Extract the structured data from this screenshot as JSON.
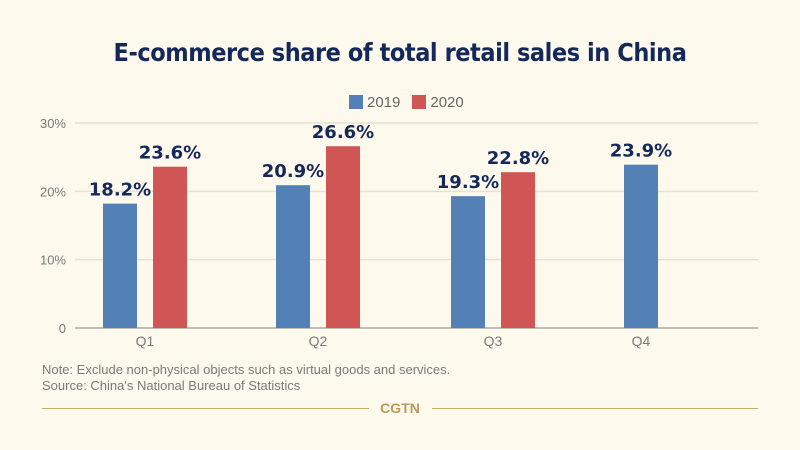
{
  "chart_data": {
    "type": "bar",
    "title": "E-commerce share of total retail sales in China",
    "categories": [
      "Q1",
      "Q2",
      "Q3",
      "Q4"
    ],
    "series": [
      {
        "name": "2019",
        "color": "#5381b5",
        "values": [
          18.2,
          20.9,
          19.3,
          23.9
        ]
      },
      {
        "name": "2020",
        "color": "#d05555",
        "values": [
          23.6,
          26.6,
          22.8,
          null
        ]
      }
    ],
    "data_labels": [
      [
        "18.2%",
        "20.9%",
        "19.3%",
        "23.9%"
      ],
      [
        "23.6%",
        "26.6%",
        "22.8%",
        null
      ]
    ],
    "xlabel": "",
    "ylabel": "",
    "ylim": [
      0,
      30
    ],
    "yticks": [
      0,
      10,
      20,
      30
    ],
    "ytick_labels": [
      "0",
      "10%",
      "20%",
      "30%"
    ],
    "grid": true,
    "legend": "top-center"
  },
  "note": "Note: Exclude non-physical objects such as virtual goods and services.",
  "source": "Source: China's National Bureau of Statistics",
  "brand": "CGTN",
  "colors": {
    "title": "#14285a",
    "label": "#14285a",
    "axis_text": "#7a7a7a",
    "grid": "#e6e1d2",
    "brand": "#b89a55"
  }
}
